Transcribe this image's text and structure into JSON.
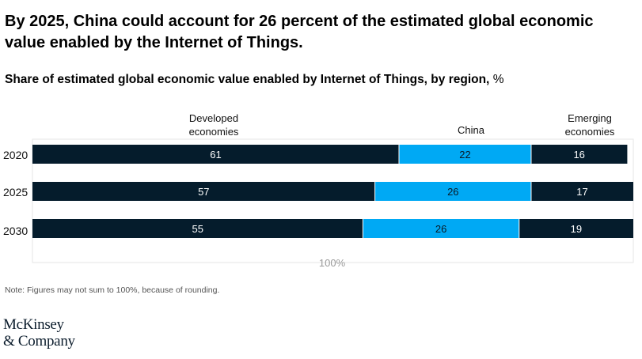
{
  "headline": "By 2025, China could account for 26 percent of the estimated global economic value enabled by the Internet of Things.",
  "subtitle": "Share of estimated global economic value enabled by Internet of Things, by region,",
  "subtitle_unit": "%",
  "note": "Note: Figures may not sum to 100%, because of rounding.",
  "logo": {
    "line1": "McKinsey",
    "line2": "& Company"
  },
  "colors": {
    "developed": "#051c2c",
    "china": "#00a9f4",
    "emerging": "#051c2c",
    "frame": "#e6e6e6"
  },
  "chart_data": {
    "type": "bar",
    "orientation": "horizontal",
    "stacked": true,
    "title": "Share of estimated global economic value enabled by Internet of Things, by region, %",
    "categories": [
      "2020",
      "2025",
      "2030"
    ],
    "series": [
      {
        "name": "Developed economies",
        "values": [
          61,
          57,
          55
        ]
      },
      {
        "name": "China",
        "values": [
          22,
          26,
          26
        ]
      },
      {
        "name": "Emerging economies",
        "values": [
          16,
          17,
          19
        ]
      }
    ],
    "total_label": "100%",
    "xlim": [
      0,
      100
    ],
    "grid": false
  }
}
